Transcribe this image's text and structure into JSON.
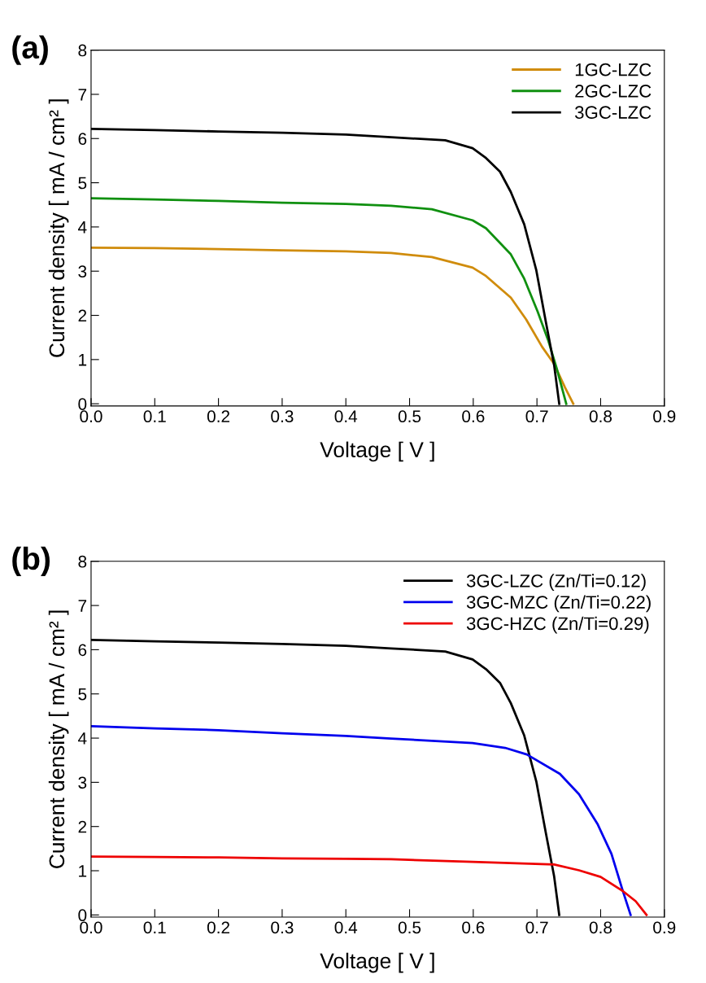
{
  "chart_data": [
    {
      "type": "line",
      "xlabel": "Voltage [ V ]",
      "ylabel": "Current density [ mA / cm² ]",
      "annotations": [
        "(a)"
      ],
      "xlim": [
        0,
        0.9
      ],
      "ylim": [
        -0.05,
        8
      ],
      "xticks": [
        {
          "value": 0,
          "label": "0.0"
        },
        0.1,
        0.2,
        0.3,
        0.4,
        0.5,
        0.6,
        0.7,
        0.8,
        0.9
      ],
      "yticks": [
        0,
        1,
        2,
        3,
        4,
        5,
        6,
        7,
        8
      ],
      "grid": false,
      "legend": "top right",
      "series": [
        {
          "name": "1GC-LZC",
          "color": "#d08c0c",
          "x": [
            0,
            0.1,
            0.2,
            0.3,
            0.4,
            0.471,
            0.535,
            0.599,
            0.62,
            0.659,
            0.683,
            0.708,
            0.727,
            0.744,
            0.757
          ],
          "values": [
            3.53,
            3.52,
            3.5,
            3.47,
            3.45,
            3.41,
            3.32,
            3.08,
            2.89,
            2.4,
            1.91,
            1.29,
            0.9,
            0.37,
            0
          ]
        },
        {
          "name": "2GC-LZC",
          "color": "#109010",
          "x": [
            0,
            0.1,
            0.2,
            0.3,
            0.4,
            0.471,
            0.535,
            0.599,
            0.62,
            0.659,
            0.68,
            0.701,
            0.718,
            0.731,
            0.746
          ],
          "values": [
            4.65,
            4.62,
            4.59,
            4.55,
            4.52,
            4.48,
            4.4,
            4.15,
            3.97,
            3.38,
            2.83,
            2.09,
            1.42,
            0.8,
            0
          ]
        },
        {
          "name": "3GC-LZC",
          "color": "#000000",
          "x": [
            0,
            0.1,
            0.2,
            0.3,
            0.4,
            0.471,
            0.556,
            0.599,
            0.62,
            0.642,
            0.659,
            0.68,
            0.699,
            0.714,
            0.727,
            0.735
          ],
          "values": [
            6.22,
            6.19,
            6.16,
            6.13,
            6.09,
            6.03,
            5.96,
            5.78,
            5.56,
            5.25,
            4.79,
            4.06,
            3.02,
            1.85,
            0.87,
            0
          ]
        }
      ]
    },
    {
      "type": "line",
      "xlabel": "Voltage [ V ]",
      "ylabel": "Current density [ mA / cm² ]",
      "annotations": [
        "(b)"
      ],
      "xlim": [
        0,
        0.9
      ],
      "ylim": [
        -0.05,
        8
      ],
      "xticks": [
        {
          "value": 0,
          "label": "0.0"
        },
        0.1,
        0.2,
        0.3,
        0.4,
        0.5,
        0.6,
        0.7,
        0.8,
        0.9
      ],
      "yticks": [
        0,
        1,
        2,
        3,
        4,
        5,
        6,
        7,
        8
      ],
      "grid": false,
      "legend": "top right",
      "series": [
        {
          "name": "3GC-LZC (Zn/Ti=0.12)",
          "color": "#000000",
          "x": [
            0,
            0.1,
            0.2,
            0.3,
            0.4,
            0.471,
            0.556,
            0.599,
            0.62,
            0.642,
            0.659,
            0.68,
            0.699,
            0.714,
            0.727,
            0.735
          ],
          "values": [
            6.22,
            6.19,
            6.16,
            6.13,
            6.09,
            6.03,
            5.96,
            5.78,
            5.56,
            5.25,
            4.79,
            4.06,
            3.02,
            1.85,
            0.87,
            0
          ]
        },
        {
          "name": "3GC-MZC (Zn/Ti=0.22)",
          "color": "#0000ee",
          "x": [
            0,
            0.1,
            0.2,
            0.3,
            0.4,
            0.471,
            0.599,
            0.65,
            0.684,
            0.736,
            0.766,
            0.795,
            0.817,
            0.834,
            0.847
          ],
          "values": [
            4.27,
            4.22,
            4.18,
            4.11,
            4.05,
            3.99,
            3.89,
            3.78,
            3.63,
            3.19,
            2.73,
            2.06,
            1.38,
            0.58,
            0
          ]
        },
        {
          "name": "3GC-HZC (Zn/Ti=0.29)",
          "color": "#ee0000",
          "x": [
            0,
            0.1,
            0.2,
            0.3,
            0.4,
            0.471,
            0.599,
            0.727,
            0.766,
            0.8,
            0.834,
            0.855,
            0.872
          ],
          "values": [
            1.32,
            1.31,
            1.3,
            1.28,
            1.27,
            1.26,
            1.2,
            1.14,
            1.01,
            0.86,
            0.55,
            0.31,
            0
          ]
        }
      ]
    }
  ]
}
